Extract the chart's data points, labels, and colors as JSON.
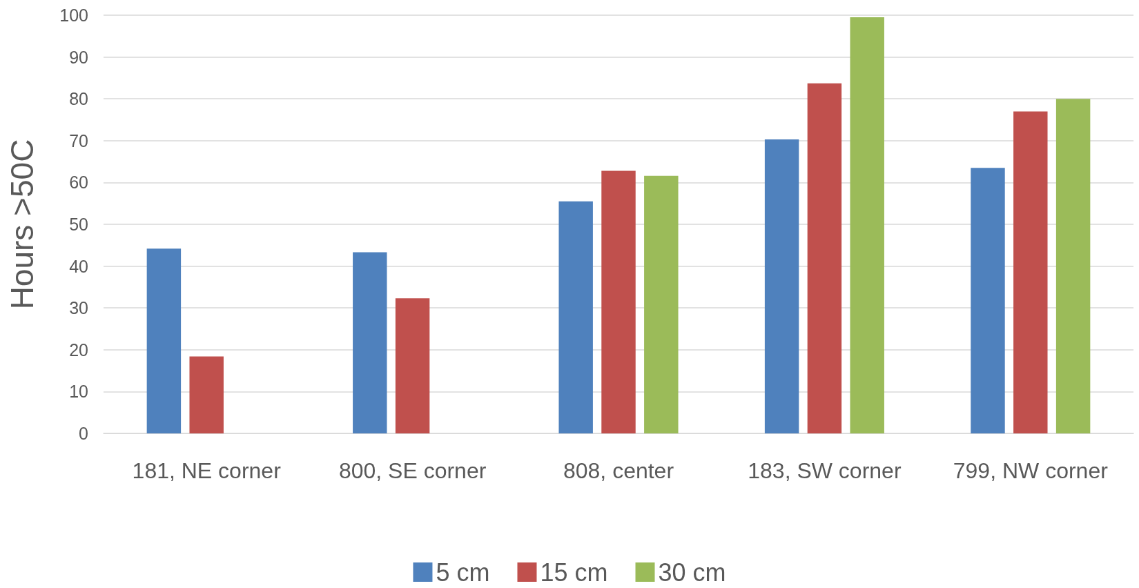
{
  "chart_data": {
    "type": "bar",
    "ylabel": "Hours >50C",
    "categories": [
      "181, NE corner",
      "800, SE corner",
      "808, center",
      "183, SW corner",
      "799, NW corner"
    ],
    "series": [
      {
        "name": "5 cm",
        "color": "#4f81bd",
        "values": [
          44.2,
          43.3,
          55.5,
          70.3,
          63.5
        ]
      },
      {
        "name": "15 cm",
        "color": "#c0504d",
        "values": [
          18.4,
          32.3,
          62.8,
          83.7,
          77.0
        ]
      },
      {
        "name": "30 cm",
        "color": "#9bbb59",
        "values": [
          null,
          null,
          61.6,
          99.5,
          80.0
        ]
      }
    ],
    "ylim": [
      0,
      100
    ],
    "yticks": [
      0,
      10,
      20,
      30,
      40,
      50,
      60,
      70,
      80,
      90,
      100
    ],
    "grid": "y",
    "legend": "bottom"
  }
}
